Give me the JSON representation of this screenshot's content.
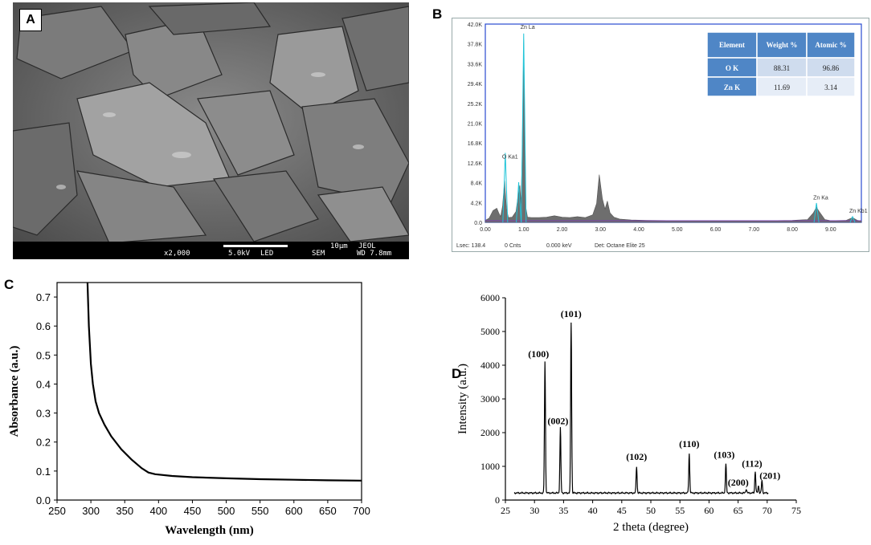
{
  "panels": {
    "a": "A",
    "b": "B",
    "c": "C",
    "d": "D"
  },
  "sem": {
    "mag": "x2,000",
    "voltage": "5.0kV",
    "mode": "LED",
    "detector": "SEM",
    "scale_label": "10µm",
    "maker": "JEOL",
    "wd": "WD 7.8mm"
  },
  "chart_data": [
    {
      "type": "area",
      "panel": "B",
      "xlabel": "",
      "ylabel": "",
      "xlim": [
        0,
        9.8
      ],
      "ylim": [
        0,
        42
      ],
      "x_ticks": [
        "0.00",
        "1.00",
        "2.00",
        "3.00",
        "4.00",
        "5.00",
        "6.00",
        "7.00",
        "8.00",
        "9.00"
      ],
      "y_ticks": [
        "0.0",
        "4.2K",
        "8.4K",
        "12.6K",
        "16.8K",
        "21.0K",
        "25.2K",
        "29.4K",
        "33.6K",
        "37.8K",
        "42.0K"
      ],
      "peak_labels": [
        {
          "text": "Zn La",
          "x": 1.0,
          "y": 40.5
        },
        {
          "text": "O Ka1",
          "x": 0.52,
          "y": 13.0
        },
        {
          "text": "Zn Ka",
          "x": 8.63,
          "y": 4.3
        },
        {
          "text": "Zn Kb1",
          "x": 9.57,
          "y": 1.5
        }
      ],
      "spectrum_x": [
        0.0,
        0.1,
        0.2,
        0.3,
        0.35,
        0.4,
        0.45,
        0.5,
        0.55,
        0.6,
        0.7,
        0.8,
        0.85,
        0.9,
        0.93,
        0.96,
        1.0,
        1.03,
        1.06,
        1.1,
        1.2,
        1.4,
        1.6,
        1.8,
        2.0,
        2.2,
        2.4,
        2.6,
        2.8,
        2.9,
        2.97,
        3.05,
        3.12,
        3.18,
        3.25,
        3.35,
        3.5,
        3.8,
        4.2,
        5.0,
        6.0,
        7.0,
        8.0,
        8.4,
        8.55,
        8.63,
        8.7,
        8.85,
        9.0,
        9.4,
        9.57,
        9.7,
        9.8
      ],
      "spectrum_y": [
        0.4,
        0.9,
        2.5,
        3.0,
        2.0,
        1.2,
        3.5,
        8.8,
        3.0,
        1.0,
        1.1,
        2.3,
        5.5,
        7.8,
        4.0,
        14.0,
        38.6,
        14.0,
        3.0,
        1.1,
        1.0,
        1.0,
        1.1,
        1.4,
        1.1,
        1.0,
        1.2,
        1.0,
        1.6,
        4.0,
        10.1,
        5.0,
        2.8,
        4.5,
        2.0,
        1.1,
        0.7,
        0.5,
        0.4,
        0.35,
        0.3,
        0.3,
        0.4,
        0.6,
        2.0,
        3.2,
        2.3,
        0.6,
        0.35,
        0.4,
        1.0,
        0.4,
        0.3
      ],
      "peak_lines": [
        {
          "x": 0.52,
          "y": 14.7
        },
        {
          "x": 0.87,
          "y": 8.5
        },
        {
          "x": 1.0,
          "y": 40.0
        },
        {
          "x": 8.63,
          "y": 4.1
        },
        {
          "x": 9.57,
          "y": 1.2
        }
      ],
      "footer": [
        "Lsec: 138.4",
        "0 Cnts",
        "0.000 keV",
        "Det: Octane Elite 25"
      ],
      "table": {
        "headers": [
          "Element",
          "Weight %",
          "Atomic %"
        ],
        "rows": [
          [
            "O K",
            "88.31",
            "96.86"
          ],
          [
            "Zn K",
            "11.69",
            "3.14"
          ]
        ]
      }
    },
    {
      "type": "line",
      "panel": "C",
      "xlabel": "Wavelength (nm)",
      "ylabel": "Absorbance (a.u.)",
      "xlim": [
        250,
        700
      ],
      "ylim": [
        0,
        0.75
      ],
      "x_ticks": [
        250,
        300,
        350,
        400,
        450,
        500,
        550,
        600,
        650,
        700
      ],
      "y_ticks": [
        0.0,
        0.1,
        0.2,
        0.3,
        0.4,
        0.5,
        0.6,
        0.7
      ],
      "x": [
        295,
        297,
        300,
        303,
        307,
        312,
        320,
        330,
        345,
        360,
        375,
        385,
        395,
        420,
        450,
        500,
        550,
        600,
        650,
        700
      ],
      "y": [
        0.75,
        0.6,
        0.47,
        0.4,
        0.34,
        0.3,
        0.26,
        0.22,
        0.175,
        0.14,
        0.11,
        0.095,
        0.089,
        0.083,
        0.079,
        0.075,
        0.072,
        0.07,
        0.068,
        0.067
      ]
    },
    {
      "type": "line",
      "panel": "D",
      "xlabel": "2 theta (degree)",
      "ylabel": "Intensity (a.u.)",
      "xlim": [
        25,
        75
      ],
      "ylim": [
        0,
        6000
      ],
      "x_ticks": [
        25,
        30,
        35,
        40,
        45,
        50,
        55,
        60,
        65,
        70,
        75
      ],
      "y_ticks": [
        0,
        1000,
        2000,
        3000,
        4000,
        5000,
        6000
      ],
      "baseline": 210,
      "peaks": [
        {
          "label": "(100)",
          "x": 31.8,
          "y": 4100
        },
        {
          "label": "(002)",
          "x": 34.45,
          "y": 2150
        },
        {
          "label": "(101)",
          "x": 36.3,
          "y": 5280
        },
        {
          "label": "(102)",
          "x": 47.55,
          "y": 1000
        },
        {
          "label": "(110)",
          "x": 56.6,
          "y": 1380
        },
        {
          "label": "(103)",
          "x": 62.9,
          "y": 1060
        },
        {
          "label": "(200)",
          "x": 66.4,
          "y": 330
        },
        {
          "label": "(112)",
          "x": 67.95,
          "y": 850
        },
        {
          "label": "(201)",
          "x": 69.1,
          "y": 580
        }
      ],
      "minor_peaks": [
        {
          "x": 68.5,
          "y": 420
        }
      ]
    }
  ]
}
